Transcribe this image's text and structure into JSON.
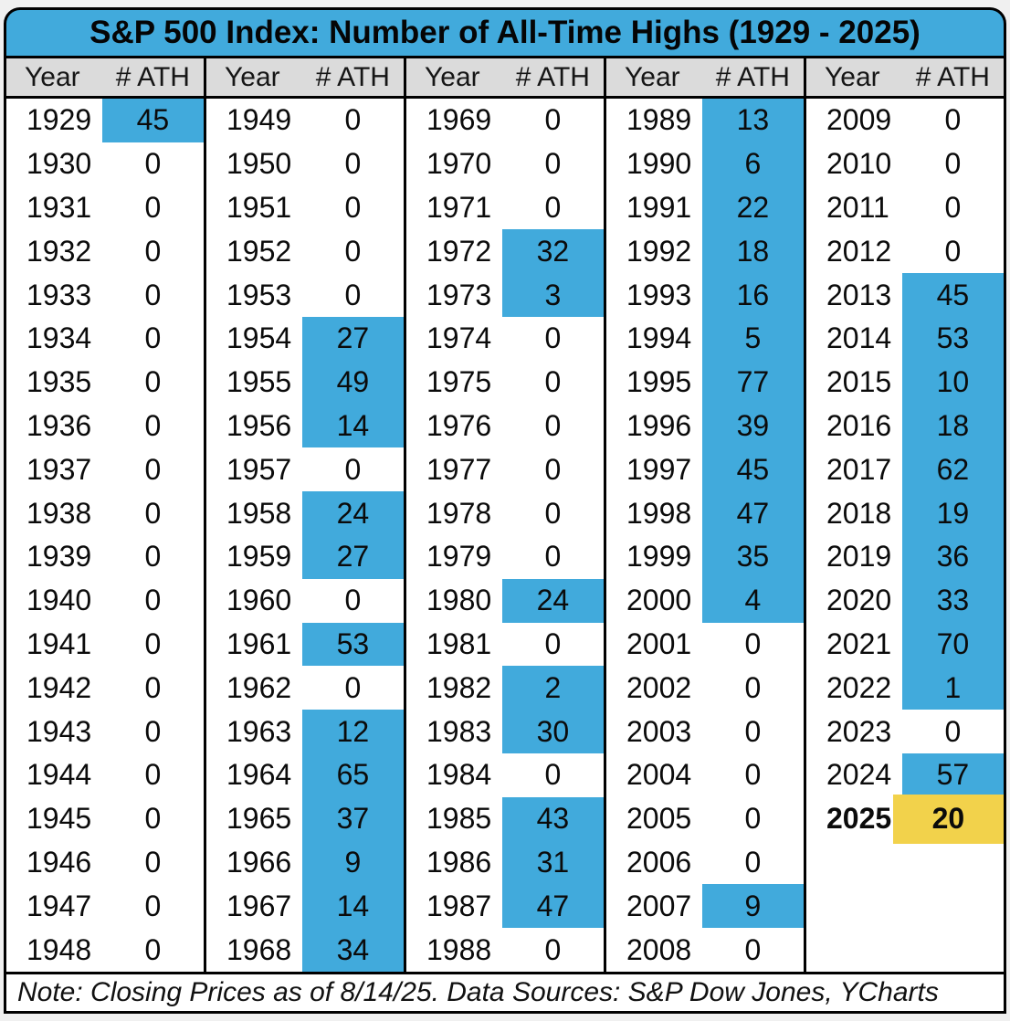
{
  "title": "S&P 500 Index: Number of All-Time Highs (1929 - 2025)",
  "header": {
    "year_label": "Year",
    "ath_label": "# ATH"
  },
  "note": "Note: Closing Prices as of 8/14/25. Data Sources: S&P Dow Jones, YCharts",
  "colors": {
    "title_bg": "#41AADC",
    "highlight_blue": "#41AADC",
    "highlight_yellow_2025": "#F2D24B",
    "header_bg": "#DBDBDB",
    "page_bg": "#F0F0F0",
    "border": "#000000"
  },
  "chart_data": {
    "type": "table",
    "title": "S&P 500 Index: Number of All-Time Highs (1929 - 2025)",
    "columns": [
      "Year",
      "# ATH"
    ],
    "layout_note": "97 year/value pairs arranged in 5 column groups of 20 rows; nonzero values shaded blue; 2025 shaded yellow with bold text",
    "rows": [
      [
        1929,
        45
      ],
      [
        1930,
        0
      ],
      [
        1931,
        0
      ],
      [
        1932,
        0
      ],
      [
        1933,
        0
      ],
      [
        1934,
        0
      ],
      [
        1935,
        0
      ],
      [
        1936,
        0
      ],
      [
        1937,
        0
      ],
      [
        1938,
        0
      ],
      [
        1939,
        0
      ],
      [
        1940,
        0
      ],
      [
        1941,
        0
      ],
      [
        1942,
        0
      ],
      [
        1943,
        0
      ],
      [
        1944,
        0
      ],
      [
        1945,
        0
      ],
      [
        1946,
        0
      ],
      [
        1947,
        0
      ],
      [
        1948,
        0
      ],
      [
        1949,
        0
      ],
      [
        1950,
        0
      ],
      [
        1951,
        0
      ],
      [
        1952,
        0
      ],
      [
        1953,
        0
      ],
      [
        1954,
        27
      ],
      [
        1955,
        49
      ],
      [
        1956,
        14
      ],
      [
        1957,
        0
      ],
      [
        1958,
        24
      ],
      [
        1959,
        27
      ],
      [
        1960,
        0
      ],
      [
        1961,
        53
      ],
      [
        1962,
        0
      ],
      [
        1963,
        12
      ],
      [
        1964,
        65
      ],
      [
        1965,
        37
      ],
      [
        1966,
        9
      ],
      [
        1967,
        14
      ],
      [
        1968,
        34
      ],
      [
        1969,
        0
      ],
      [
        1970,
        0
      ],
      [
        1971,
        0
      ],
      [
        1972,
        32
      ],
      [
        1973,
        3
      ],
      [
        1974,
        0
      ],
      [
        1975,
        0
      ],
      [
        1976,
        0
      ],
      [
        1977,
        0
      ],
      [
        1978,
        0
      ],
      [
        1979,
        0
      ],
      [
        1980,
        24
      ],
      [
        1981,
        0
      ],
      [
        1982,
        2
      ],
      [
        1983,
        30
      ],
      [
        1984,
        0
      ],
      [
        1985,
        43
      ],
      [
        1986,
        31
      ],
      [
        1987,
        47
      ],
      [
        1988,
        0
      ],
      [
        1989,
        13
      ],
      [
        1990,
        6
      ],
      [
        1991,
        22
      ],
      [
        1992,
        18
      ],
      [
        1993,
        16
      ],
      [
        1994,
        5
      ],
      [
        1995,
        77
      ],
      [
        1996,
        39
      ],
      [
        1997,
        45
      ],
      [
        1998,
        47
      ],
      [
        1999,
        35
      ],
      [
        2000,
        4
      ],
      [
        2001,
        0
      ],
      [
        2002,
        0
      ],
      [
        2003,
        0
      ],
      [
        2004,
        0
      ],
      [
        2005,
        0
      ],
      [
        2006,
        0
      ],
      [
        2007,
        9
      ],
      [
        2008,
        0
      ],
      [
        2009,
        0
      ],
      [
        2010,
        0
      ],
      [
        2011,
        0
      ],
      [
        2012,
        0
      ],
      [
        2013,
        45
      ],
      [
        2014,
        53
      ],
      [
        2015,
        10
      ],
      [
        2016,
        18
      ],
      [
        2017,
        62
      ],
      [
        2018,
        19
      ],
      [
        2019,
        36
      ],
      [
        2020,
        33
      ],
      [
        2021,
        70
      ],
      [
        2022,
        1
      ],
      [
        2023,
        0
      ],
      [
        2024,
        57
      ],
      [
        2025,
        20
      ]
    ],
    "special_rows": {
      "2025": {
        "highlight": "yellow",
        "bold": true,
        "value": 20
      }
    },
    "footer_note": "Note: Closing Prices as of 8/14/25. Data Sources: S&P Dow Jones, YCharts"
  }
}
